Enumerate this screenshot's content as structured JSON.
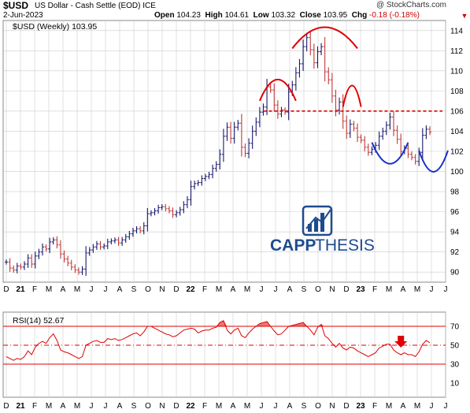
{
  "header": {
    "symbol": "$USD",
    "name": "US Dollar - Cash Settle (EOD) ICE",
    "date": "2-Jun-2023",
    "watermark": "@ StockCharts.com",
    "open_label": "Open",
    "open": "104.23",
    "high_label": "High",
    "high": "104.61",
    "low_label": "Low",
    "low": "103.32",
    "close_label": "Close",
    "close": "103.95",
    "chg_label": "Chg",
    "chg": "-0.18 (-0.18%)"
  },
  "colors": {
    "bar": "#1a1a6e",
    "bar_down": "#c23a3a",
    "rsi_line": "#e00000",
    "overlay_red": "#e00000",
    "overlay_blue": "#1530c8",
    "grid": "#cccccc",
    "logo": "#1f4b8e"
  },
  "logo": {
    "text_a": "CAPP",
    "text_b": "THESIS"
  },
  "chart_data": [
    {
      "type": "line",
      "title": "",
      "legend": "$USD (Weekly) 103.95",
      "ylim": [
        89,
        115
      ],
      "y_ticks": [
        "90",
        "92",
        "94",
        "96",
        "98",
        "100",
        "102",
        "104",
        "106",
        "108",
        "110",
        "112",
        "114"
      ],
      "x_ticks": [
        "D",
        "21",
        "F",
        "M",
        "A",
        "M",
        "J",
        "J",
        "A",
        "S",
        "O",
        "N",
        "D",
        "22",
        "F",
        "M",
        "A",
        "M",
        "J",
        "J",
        "A",
        "S",
        "O",
        "N",
        "D",
        "23",
        "F",
        "M",
        "A",
        "M",
        "J",
        "J"
      ],
      "grid": true,
      "series": [
        {
          "values": [
            91.0,
            90.4,
            90.2,
            90.6,
            90.5,
            90.8,
            91.4,
            90.8,
            91.6,
            92.0,
            92.5,
            92.3,
            93.0,
            93.2,
            92.7,
            91.8,
            91.3,
            90.9,
            90.5,
            90.2,
            90.0,
            90.3,
            91.9,
            92.2,
            92.5,
            92.8,
            92.5,
            92.6,
            93.0,
            93.1,
            93.2,
            92.9,
            93.2,
            93.5,
            93.8,
            94.1,
            94.3,
            94.1,
            94.6,
            95.8,
            95.9,
            96.1,
            96.4,
            96.5,
            96.3,
            96.1,
            95.7,
            95.9,
            96.2,
            96.7,
            97.2,
            98.5,
            98.8,
            98.9,
            99.3,
            99.5,
            99.7,
            100.3,
            100.7,
            101.7,
            103.5,
            104.4,
            103.3,
            104.4,
            104.8,
            102.4,
            101.8,
            102.8,
            104.0,
            104.9,
            105.9,
            106.4,
            108.4,
            108.1,
            106.6,
            105.7,
            106.1,
            105.9,
            107.9,
            108.6,
            109.8,
            110.7,
            112.4,
            113.3,
            112.1,
            110.8,
            111.9,
            112.4,
            109.9,
            109.1,
            107.5,
            106.1,
            106.9,
            105.0,
            103.8,
            104.7,
            104.3,
            103.4,
            103.1,
            102.4,
            101.9,
            102.2,
            102.6,
            103.5,
            104.0,
            104.6,
            105.4,
            104.1,
            103.2,
            102.0,
            102.3,
            101.7,
            101.4,
            101.0,
            101.9,
            103.6,
            104.2,
            103.9
          ]
        }
      ],
      "annotations": {
        "resistance_level": 106
      }
    },
    {
      "type": "line",
      "title": "",
      "legend": "RSI(14) 52.67",
      "ylim": [
        0,
        80
      ],
      "y_ticks": [
        "10",
        "30",
        "50",
        "70"
      ],
      "x_ticks": [
        "D",
        "21",
        "F",
        "M",
        "A",
        "M",
        "J",
        "J",
        "A",
        "S",
        "O",
        "N",
        "D",
        "22",
        "F",
        "M",
        "A",
        "M",
        "J",
        "J",
        "A",
        "S",
        "O",
        "N",
        "D",
        "23",
        "F",
        "M",
        "A",
        "M",
        "J",
        "J"
      ],
      "reference_lines": [
        30,
        50,
        70
      ],
      "series": [
        {
          "values": [
            38,
            36,
            34,
            36,
            35,
            38,
            44,
            40,
            48,
            52,
            54,
            52,
            58,
            62,
            55,
            45,
            43,
            42,
            40,
            38,
            36,
            38,
            50,
            52,
            54,
            55,
            53,
            53,
            57,
            56,
            57,
            55,
            56,
            58,
            60,
            62,
            63,
            60,
            64,
            70,
            70,
            68,
            66,
            64,
            62,
            61,
            59,
            60,
            63,
            66,
            67,
            68,
            67,
            63,
            65,
            66,
            66,
            68,
            69,
            74,
            76,
            66,
            62,
            66,
            68,
            60,
            58,
            63,
            67,
            70,
            73,
            74,
            75,
            70,
            65,
            61,
            62,
            66,
            70,
            71,
            72,
            73,
            74,
            70,
            66,
            61,
            69,
            72,
            60,
            57,
            52,
            48,
            52,
            47,
            45,
            48,
            47,
            44,
            42,
            40,
            38,
            40,
            42,
            47,
            49,
            51,
            51,
            45,
            42,
            40,
            42,
            40,
            40,
            38,
            43,
            51,
            55,
            52.67
          ]
        }
      ]
    }
  ]
}
